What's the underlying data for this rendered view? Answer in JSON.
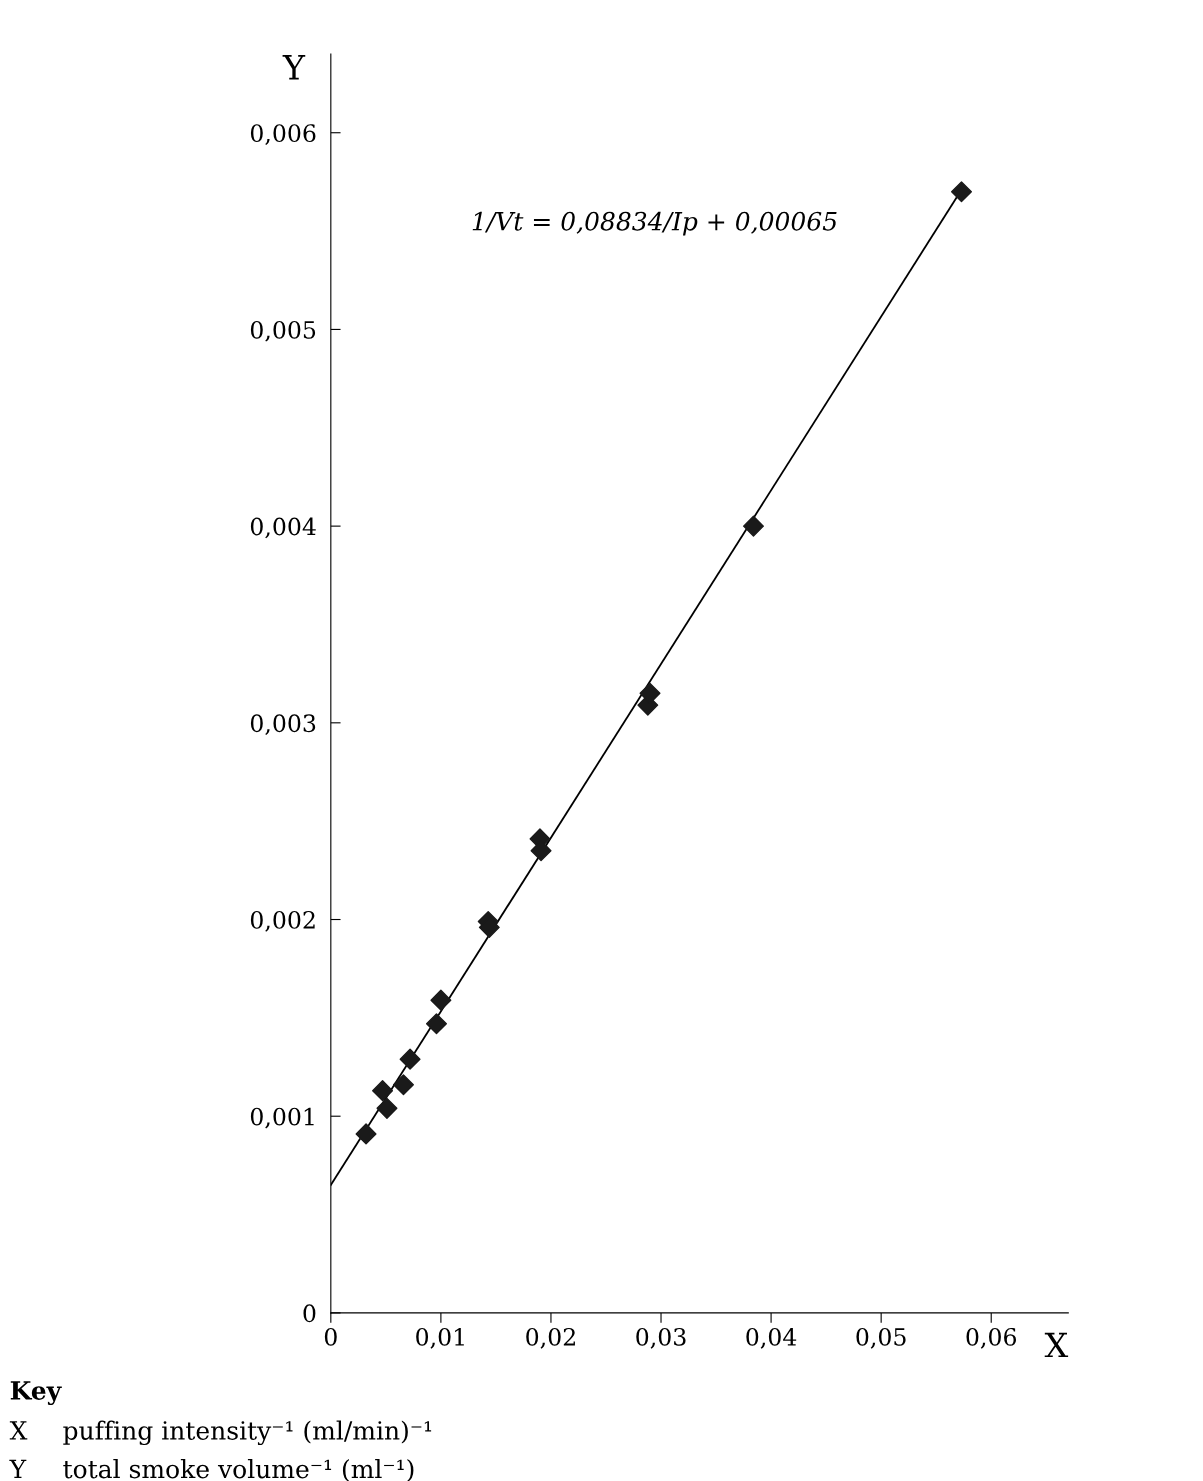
{
  "chart_data": {
    "type": "scatter",
    "xlabel": "X",
    "ylabel": "Y",
    "x": [
      0.0032,
      0.0047,
      0.0051,
      0.0066,
      0.0072,
      0.0096,
      0.01,
      0.0143,
      0.0144,
      0.019,
      0.0191,
      0.0288,
      0.029,
      0.0384,
      0.0573
    ],
    "series": [
      {
        "color": "#1a1a1a",
        "marker": "diamond",
        "values": [
          0.00091,
          0.00113,
          0.00104,
          0.00116,
          0.00129,
          0.00147,
          0.00159,
          0.00199,
          0.00196,
          0.00241,
          0.00235,
          0.00309,
          0.00315,
          0.004,
          0.0057
        ]
      },
      {
        "type": "line",
        "color": "#000000",
        "x": [
          0,
          0.0573
        ],
        "values": [
          0.00065,
          0.00571
        ],
        "marker": "none",
        "line_style": "solid"
      }
    ],
    "xlim": [
      0,
      0.067
    ],
    "ylim": [
      0,
      0.0064
    ],
    "xticks": [
      0,
      {
        "value": 0.01,
        "label": "0,01"
      },
      {
        "value": 0.02,
        "label": "0,02"
      },
      {
        "value": 0.03,
        "label": "0,03"
      },
      {
        "value": 0.04,
        "label": "0,04"
      },
      {
        "value": 0.05,
        "label": "0,05"
      },
      {
        "value": 0.06,
        "label": "0,06"
      }
    ],
    "yticks": [
      0,
      {
        "value": 0.001,
        "label": "0,001"
      },
      {
        "value": 0.002,
        "label": "0,002"
      },
      {
        "value": 0.003,
        "label": "0,003"
      },
      {
        "value": 0.004,
        "label": "0,004"
      },
      {
        "value": 0.005,
        "label": "0,005"
      },
      {
        "value": 0.006,
        "label": "0,006"
      }
    ],
    "grid": false,
    "legend": false,
    "annotations": [
      "1/Vt = 0,08834/Ip + 0,00065",
      "Key",
      "X",
      "puffing intensity⁻¹ (ml/min)⁻¹",
      "Y",
      "total smoke volume⁻¹ (ml⁻¹)"
    ]
  }
}
